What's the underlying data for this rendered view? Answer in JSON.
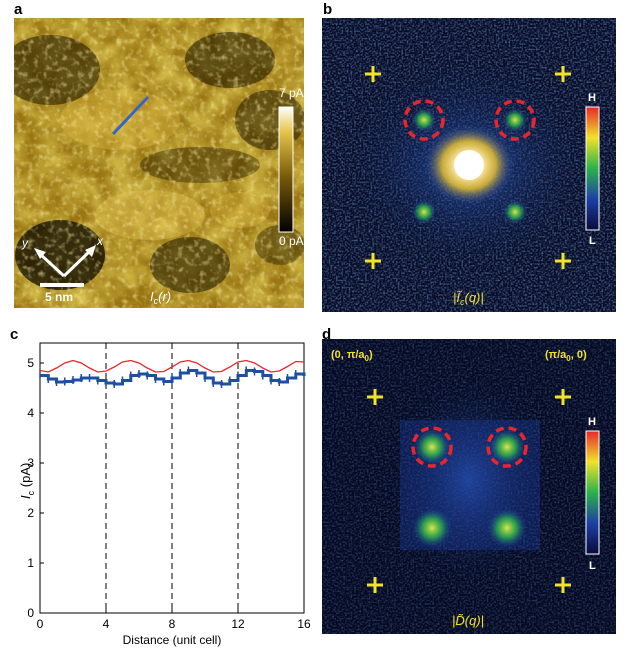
{
  "panel_labels": [
    "a",
    "b",
    "c",
    "d"
  ],
  "panel_a": {
    "colorbar_max": "7 pA",
    "colorbar_min": "0 pA",
    "axis_y": "y",
    "axis_x": "x",
    "scale_bar": "5 nm",
    "map_label": "I",
    "map_label_sub": "c",
    "map_label_arg": "(r)"
  },
  "panel_b": {
    "colorbar_high": "H",
    "colorbar_low": "L",
    "map_label": "|Ĩ",
    "map_label_sub": "c",
    "map_label_arg": "(q)|"
  },
  "panel_d": {
    "corner_left": "(0, π/a",
    "corner_left_sub": "0",
    "corner_left_end": ")",
    "corner_right": "(π/a",
    "corner_right_sub": "0",
    "corner_right_end": ", 0)",
    "colorbar_high": "H",
    "colorbar_low": "L",
    "map_label": "|D̃(q)|"
  },
  "colors": {
    "cross": "#f2e22a",
    "circle": "#e8262b",
    "fit_line": "#e8262b",
    "data_line": "#1f4fa0"
  },
  "chart_data": {
    "type": "line",
    "xlabel": "Distance (unit cell)",
    "ylabel": "I",
    "ylabel_sub": "c",
    "ylabel_unit": " (pA)",
    "xlim": [
      0,
      16
    ],
    "ylim": [
      0,
      5.4
    ],
    "xticks": [
      0,
      4,
      8,
      12,
      16
    ],
    "yticks": [
      0,
      1,
      2,
      3,
      4,
      5
    ],
    "vlines": [
      4,
      8,
      12
    ],
    "series": [
      {
        "style": "red-line",
        "x": [
          0,
          0.5,
          1,
          1.5,
          2,
          2.5,
          3,
          3.5,
          4,
          4.5,
          5,
          5.5,
          6,
          6.5,
          7,
          7.5,
          8,
          8.5,
          9,
          9.5,
          10,
          10.5,
          11,
          11.5,
          12,
          12.5,
          13,
          13.5,
          14,
          14.5,
          15,
          15.5,
          16
        ],
        "y": [
          4.85,
          4.82,
          4.9,
          5.0,
          5.05,
          5.0,
          4.9,
          4.82,
          4.84,
          4.92,
          5.02,
          5.05,
          5.0,
          4.9,
          4.82,
          4.83,
          4.92,
          5.02,
          5.05,
          5.0,
          4.9,
          4.82,
          4.83,
          4.92,
          5.02,
          5.05,
          5.0,
          4.9,
          4.82,
          4.84,
          4.93,
          5.03,
          5.02
        ]
      },
      {
        "style": "blue-steps",
        "x": [
          0,
          0.5,
          1,
          1.5,
          2,
          2.5,
          3,
          3.5,
          4,
          4.5,
          5,
          5.5,
          6,
          6.5,
          7,
          7.5,
          8,
          8.5,
          9,
          9.5,
          10,
          10.5,
          11,
          11.5,
          12,
          12.5,
          13,
          13.5,
          14,
          14.5,
          15,
          15.5,
          16
        ],
        "y": [
          4.75,
          4.68,
          4.62,
          4.63,
          4.66,
          4.7,
          4.7,
          4.65,
          4.6,
          4.58,
          4.65,
          4.75,
          4.78,
          4.75,
          4.68,
          4.63,
          4.7,
          4.8,
          4.85,
          4.8,
          4.7,
          4.6,
          4.58,
          4.65,
          4.75,
          4.85,
          4.83,
          4.75,
          4.65,
          4.62,
          4.7,
          4.78,
          4.74
        ]
      }
    ]
  }
}
